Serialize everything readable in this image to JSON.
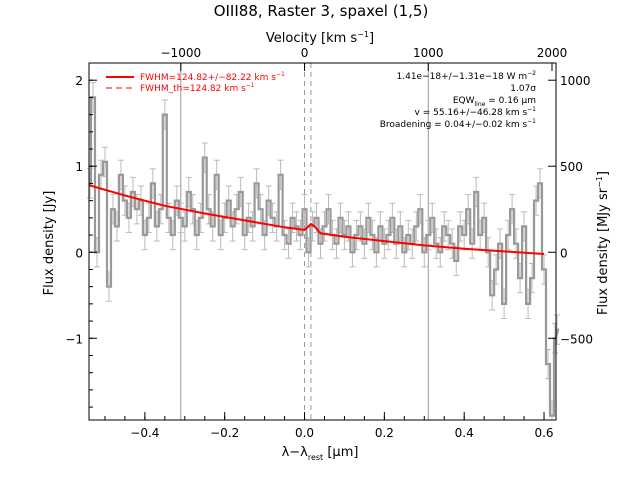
{
  "chart_data": {
    "type": "line",
    "title": "OIII88, Raster 3, spaxel (1,5)",
    "xlabel": "λ−λ",
    "xlabel_sub": "rest",
    "xlabel_unit_pre": " [",
    "xlabel_unit": "μ",
    "xlabel_unit_post": "m]",
    "ylabel": "Flux density [Jy]",
    "top_label": "Velocity [km s",
    "top_label_sup": "−1",
    "top_label_post": "]",
    "right_label": "Flux density [MJy sr",
    "right_label_sup": "−1",
    "right_label_post": "]",
    "xlim": [
      -0.54,
      0.63
    ],
    "ylim": [
      -1.95,
      2.2
    ],
    "x_ticks": [
      -0.4,
      -0.2,
      0.0,
      0.2,
      0.4,
      0.6
    ],
    "x_tick_labels": [
      "−0.4",
      "−0.2",
      "0.0",
      "0.2",
      "0.4",
      "0.6"
    ],
    "y_ticks": [
      -1,
      0,
      1,
      2
    ],
    "y_tick_labels": [
      "−1",
      "0",
      "1",
      "2"
    ],
    "top_ticks": [
      {
        "x": -0.31,
        "label": "−1000"
      },
      {
        "x": 0.0,
        "label": "0"
      },
      {
        "x": 0.31,
        "label": "1000"
      },
      {
        "x": 0.62,
        "label": "2000"
      }
    ],
    "right_ticks": [
      {
        "y": 2.0,
        "label": "1000"
      },
      {
        "y": 1.0,
        "label": "500"
      },
      {
        "y": 0.0,
        "label": "0"
      },
      {
        "y": -1.0,
        "label": "−500"
      }
    ],
    "vlines_solid": [
      -0.31,
      0.31
    ],
    "vlines_dashed": [
      0.0,
      0.016
    ],
    "legend": [
      {
        "label": "FWHM=124.82+/−82.22 km s",
        "sup": "−1",
        "style": "solid"
      },
      {
        "label": "FWHM_th=124.82 km s",
        "sup": "−1",
        "style": "dashed"
      }
    ],
    "annotations": [
      {
        "text": "1.41e−18+/−1.31e−18 W m",
        "sup": "−2"
      },
      {
        "text": "1.07σ",
        "sup": ""
      },
      {
        "text": "EQW",
        "sub": "line",
        "post": " = 0.16 μm",
        "sup": ""
      },
      {
        "text": "v = 55.16+/−46.28 km s",
        "sup": "−1"
      },
      {
        "text": "Broadening = 0.04+/−0.02 km s",
        "sup": "−1"
      }
    ],
    "series": [
      {
        "name": "FWHM=124.82+/−82.22 km s−1",
        "kind": "fit",
        "x": [
          -0.54,
          -0.45,
          -0.35,
          -0.25,
          -0.15,
          -0.05,
          0.0,
          0.01,
          0.016,
          0.025,
          0.04,
          0.1,
          0.2,
          0.3,
          0.4,
          0.5,
          0.6
        ],
        "y": [
          0.78,
          0.66,
          0.54,
          0.45,
          0.37,
          0.29,
          0.26,
          0.3,
          0.33,
          0.3,
          0.22,
          0.18,
          0.13,
          0.08,
          0.04,
          0.01,
          -0.02
        ]
      },
      {
        "name": "spectrum",
        "kind": "data",
        "step": 0.01,
        "x_start": -0.545,
        "y": [
          0.8,
          1.8,
          0.0,
          0.9,
          1.05,
          -0.4,
          0.5,
          0.3,
          0.9,
          0.6,
          0.4,
          0.7,
          0.5,
          0.6,
          0.2,
          0.4,
          0.8,
          0.3,
          0.5,
          1.6,
          0.4,
          0.2,
          0.6,
          0.4,
          0.3,
          0.7,
          0.5,
          0.2,
          0.4,
          1.1,
          0.5,
          0.3,
          0.9,
          0.2,
          0.4,
          0.6,
          0.3,
          0.5,
          0.7,
          0.2,
          0.4,
          0.3,
          0.8,
          0.5,
          0.2,
          0.6,
          0.4,
          0.3,
          0.9,
          0.2,
          0.1,
          0.4,
          0.3,
          0.2,
          0.5,
          0.0,
          0.3,
          0.4,
          0.1,
          0.3,
          0.5,
          0.2,
          0.1,
          0.4,
          0.2,
          0.3,
          0.0,
          0.2,
          0.3,
          0.1,
          0.4,
          0.2,
          0.0,
          0.3,
          0.1,
          0.2,
          0.4,
          0.1,
          0.3,
          0.0,
          0.2,
          0.1,
          0.3,
          0.5,
          0.0,
          0.2,
          0.4,
          0.1,
          0.0,
          0.3,
          0.2,
          0.1,
          -0.1,
          0.3,
          0.2,
          0.5,
          0.1,
          0.7,
          0.2,
          0.4,
          0.0,
          -0.5,
          -0.2,
          0.1,
          -0.6,
          0.2,
          0.5,
          0.1,
          -0.3,
          0.3,
          -0.6,
          -0.3,
          0.6,
          0.8,
          -0.2,
          -1.3,
          -1.9,
          -1.0,
          -0.9
        ]
      }
    ],
    "colors": {
      "data": "#999999",
      "fit": "#ff0000",
      "vline": "#999999",
      "axis": "#000000"
    }
  }
}
